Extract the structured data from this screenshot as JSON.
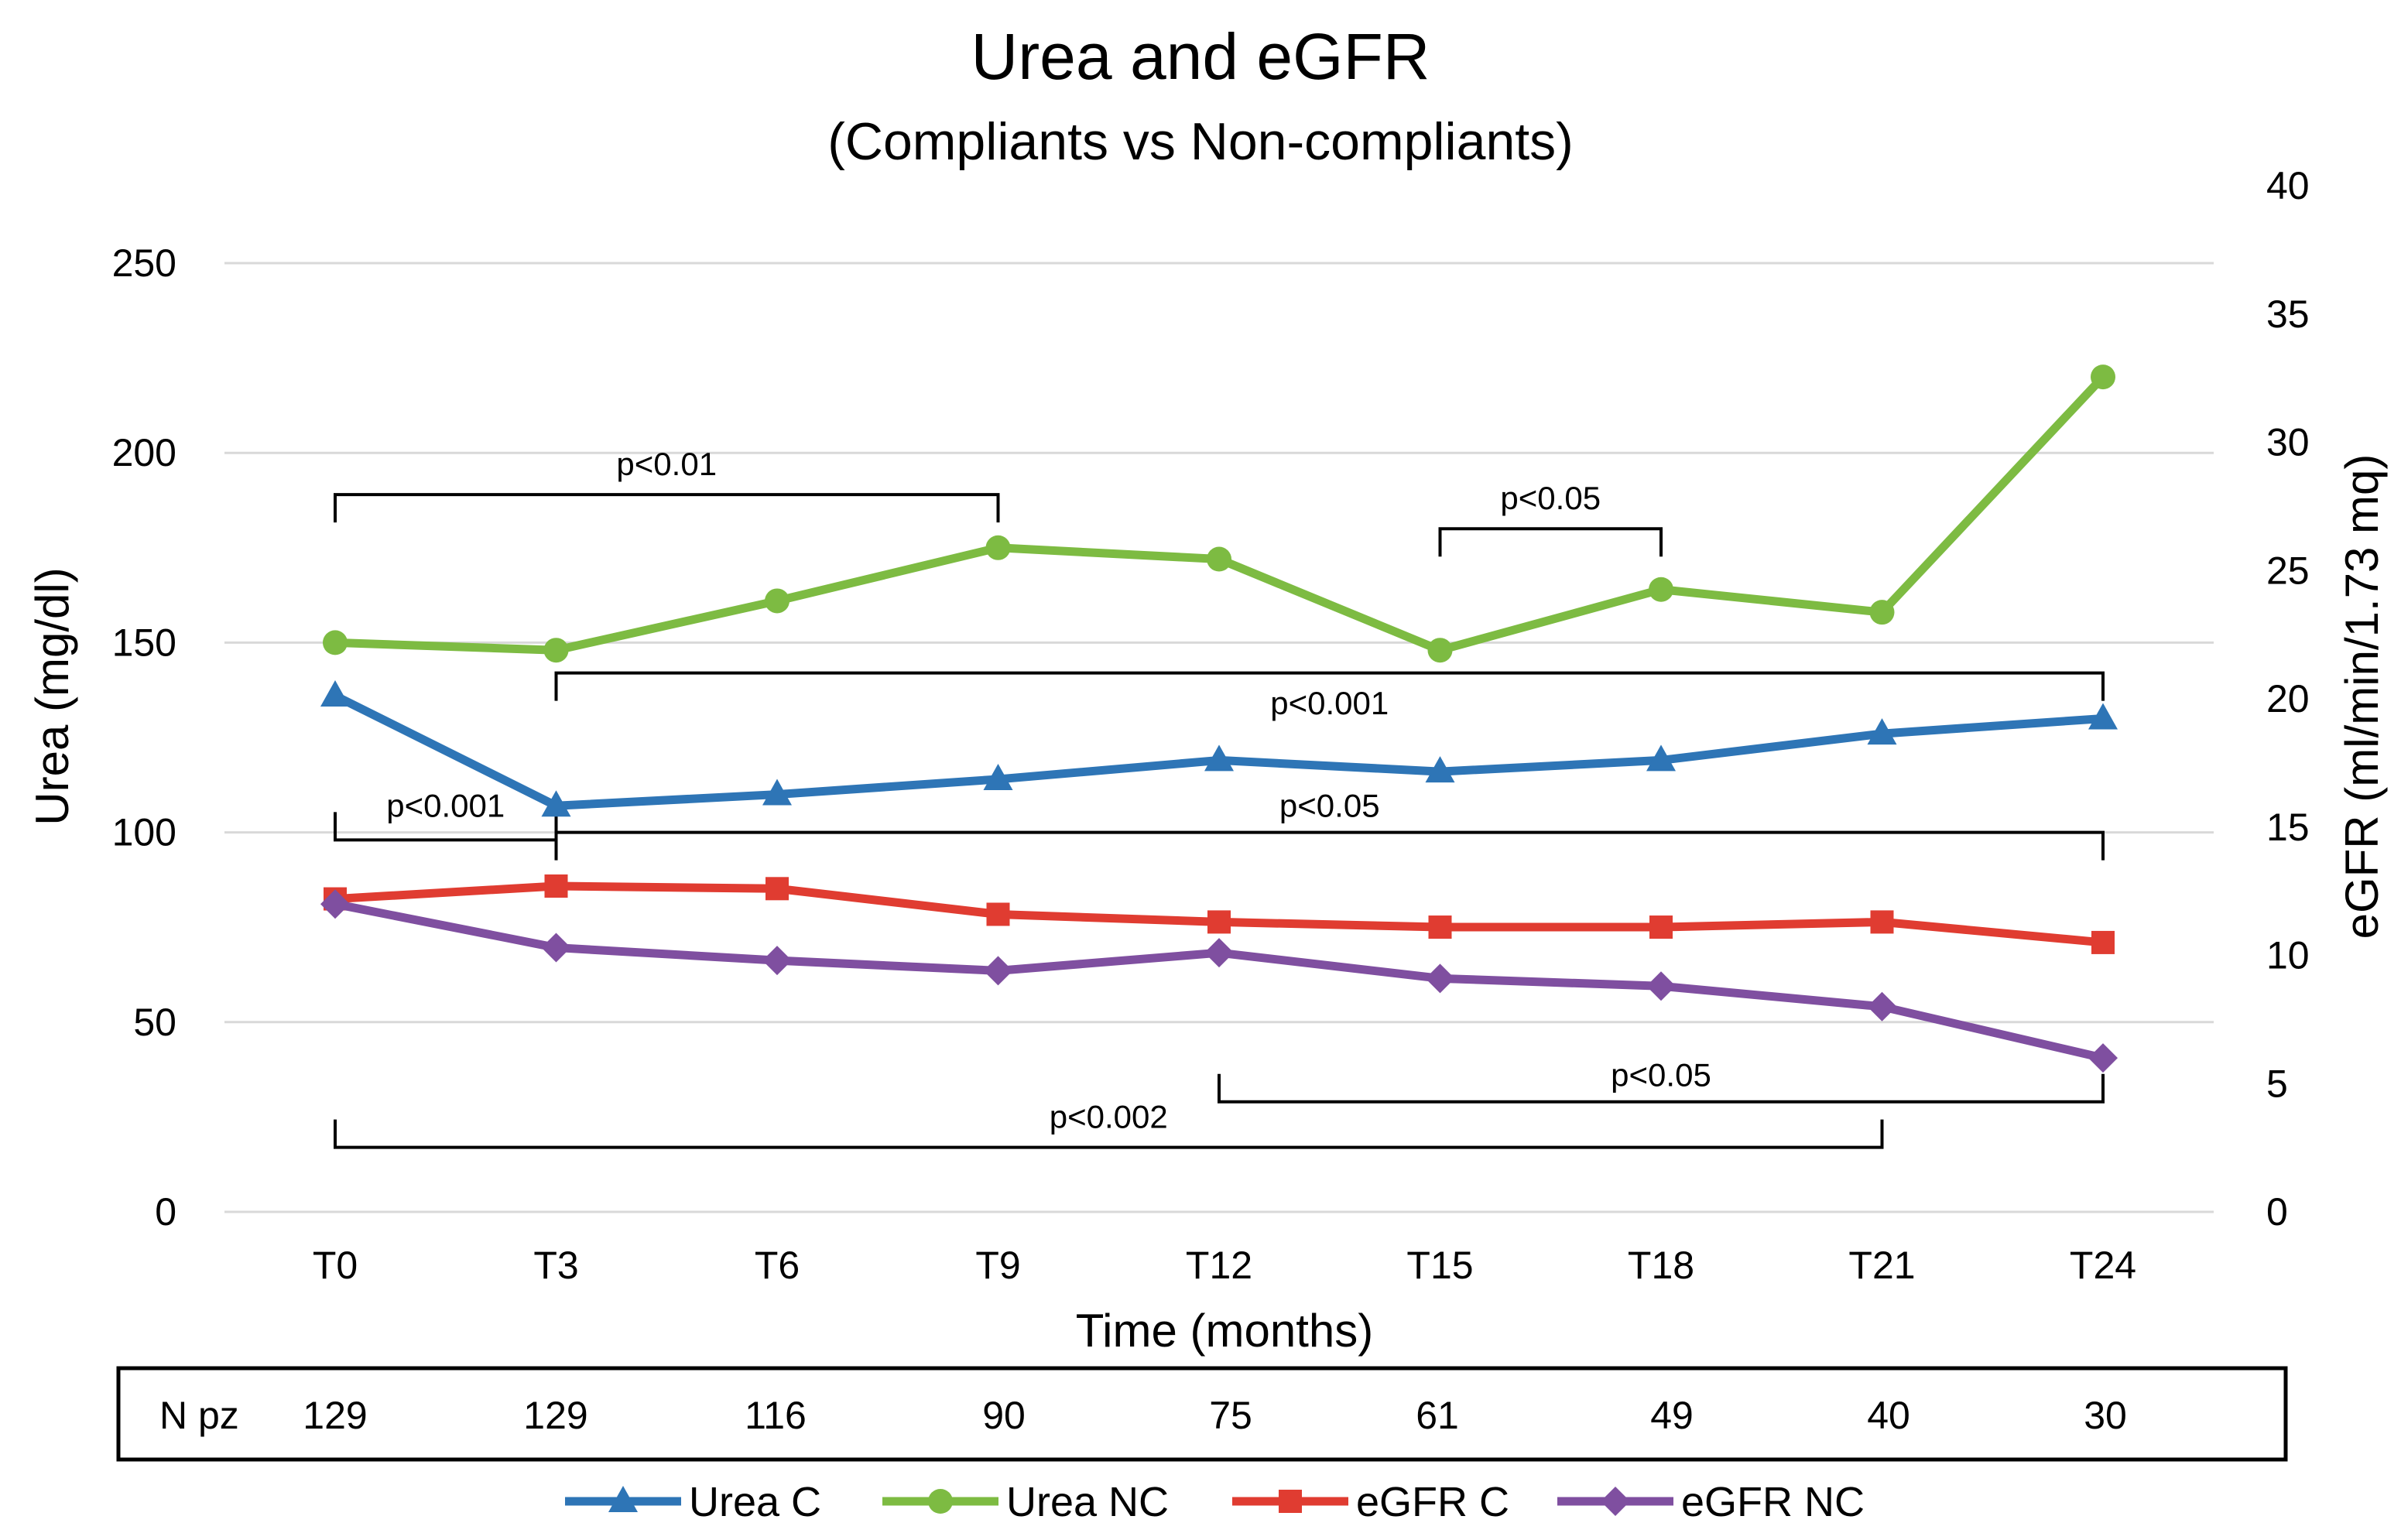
{
  "chart_data": {
    "type": "line",
    "title": "Urea and eGFR",
    "subtitle": "(Compliants vs Non-compliants)",
    "xlabel": "Time (months)",
    "ylabel_left": "Urea (mg/dl)",
    "ylabel_right": "eGFR (ml/min/1.73 mq)",
    "categories": [
      "T0",
      "T3",
      "T6",
      "T9",
      "T12",
      "T15",
      "T18",
      "T21",
      "T24"
    ],
    "y_left": {
      "min": 0,
      "max": 250,
      "ticks": [
        0,
        50,
        100,
        150,
        200,
        250
      ]
    },
    "y_right": {
      "min": 0,
      "max": 40,
      "ticks": [
        0,
        5,
        10,
        15,
        20,
        25,
        30,
        35,
        40
      ]
    },
    "series": [
      {
        "name": "Urea C",
        "axis": "left",
        "color": "#2e75b6",
        "marker": "triangle",
        "values": [
          136,
          107,
          110,
          114,
          119,
          116,
          119,
          126,
          130
        ]
      },
      {
        "name": "Urea NC",
        "axis": "left",
        "color": "#7dbb42",
        "marker": "circle",
        "values": [
          150,
          148,
          161,
          175,
          172,
          148,
          164,
          158,
          220
        ]
      },
      {
        "name": "eGFR C",
        "axis": "right",
        "color": "#e03c31",
        "marker": "square",
        "values": [
          12.2,
          12.7,
          12.6,
          11.6,
          11.3,
          11.1,
          11.1,
          11.3,
          10.5
        ]
      },
      {
        "name": "eGFR NC",
        "axis": "right",
        "color": "#7f4fa0",
        "marker": "diamond",
        "values": [
          12.0,
          10.3,
          9.8,
          9.4,
          10.1,
          9.1,
          8.8,
          8.0,
          6.0
        ]
      }
    ],
    "annotations": [
      {
        "text": "p<0.01",
        "from": "T0",
        "to": "T9",
        "axis": "left",
        "y": 189,
        "open": "down",
        "label_y": 197
      },
      {
        "text": "p<0.05",
        "from": "T15",
        "to": "T18",
        "axis": "left",
        "y": 180,
        "open": "down",
        "label_y": 188
      },
      {
        "text": "p<0.001",
        "from": "T3",
        "to": "T24",
        "axis": "left",
        "y": 142,
        "open": "down",
        "label_y": 134
      },
      {
        "text": "p<0.001",
        "from": "T0",
        "to": "T3",
        "axis": "left",
        "y": 98,
        "open": "up",
        "label_y": 107
      },
      {
        "text": "p<0.05",
        "from": "T3",
        "to": "T24",
        "axis": "left",
        "y": 100,
        "open": "down",
        "label_y": 107
      },
      {
        "text": "p<0.05",
        "from": "T12",
        "to": "T24",
        "axis": "left",
        "y": 29,
        "open": "up",
        "label_y": 36
      },
      {
        "text": "p<0.002",
        "from": "T0",
        "to": "T21",
        "axis": "left",
        "y": 17,
        "open": "up",
        "label_y": 25
      }
    ],
    "n_pz": {
      "label": "N pz",
      "values": [
        129,
        129,
        116,
        90,
        75,
        61,
        49,
        40,
        30
      ]
    },
    "legend_position": "bottom"
  }
}
